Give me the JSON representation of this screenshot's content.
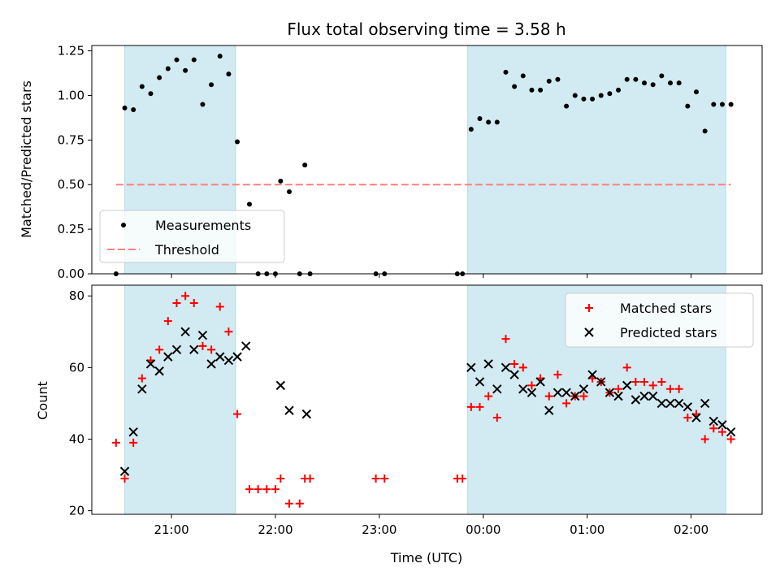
{
  "chart_data": [
    {
      "type": "scatter",
      "title": "Flux total observing time = 3.58 h",
      "xlabel": "",
      "ylabel": "Matched/Predicted stars",
      "ylim": [
        0,
        1.28
      ],
      "xlim": [
        "20:14",
        "02:41"
      ],
      "yticks": [
        "0.00",
        "0.25",
        "0.50",
        "0.75",
        "1.00",
        "1.25"
      ],
      "shaded_intervals": [
        [
          "20:33",
          "21:37"
        ],
        [
          "23:51",
          "02:20"
        ]
      ],
      "shade_color": "#add8e6",
      "threshold": 0.5,
      "threshold_color": "#ff7f7f",
      "legend": {
        "position": "lower-left",
        "entries": [
          "Measurements",
          "Threshold"
        ]
      },
      "series": [
        {
          "name": "Measurements",
          "color": "#000000",
          "points": [
            [
              "20:28",
              0.0
            ],
            [
              "20:33",
              0.93
            ],
            [
              "20:38",
              0.92
            ],
            [
              "20:43",
              1.05
            ],
            [
              "20:48",
              1.01
            ],
            [
              "20:53",
              1.1
            ],
            [
              "20:58",
              1.15
            ],
            [
              "21:03",
              1.2
            ],
            [
              "21:08",
              1.14
            ],
            [
              "21:13",
              1.2
            ],
            [
              "21:18",
              0.95
            ],
            [
              "21:23",
              1.06
            ],
            [
              "21:28",
              1.22
            ],
            [
              "21:33",
              1.12
            ],
            [
              "21:38",
              0.74
            ],
            [
              "21:45",
              0.39
            ],
            [
              "21:50",
              0.0
            ],
            [
              "21:55",
              0.0
            ],
            [
              "22:00",
              0.0
            ],
            [
              "22:03",
              0.52
            ],
            [
              "22:08",
              0.46
            ],
            [
              "22:14",
              0.0
            ],
            [
              "22:17",
              0.61
            ],
            [
              "22:20",
              0.0
            ],
            [
              "22:58",
              0.0
            ],
            [
              "23:03",
              0.0
            ],
            [
              "23:45",
              0.0
            ],
            [
              "23:48",
              0.0
            ],
            [
              "23:53",
              0.81
            ],
            [
              "23:58",
              0.87
            ],
            [
              "00:03",
              0.85
            ],
            [
              "00:08",
              0.85
            ],
            [
              "00:13",
              1.13
            ],
            [
              "00:18",
              1.05
            ],
            [
              "00:23",
              1.11
            ],
            [
              "00:28",
              1.03
            ],
            [
              "00:33",
              1.03
            ],
            [
              "00:38",
              1.08
            ],
            [
              "00:43",
              1.09
            ],
            [
              "00:48",
              0.94
            ],
            [
              "00:53",
              1.0
            ],
            [
              "00:58",
              0.98
            ],
            [
              "01:03",
              0.98
            ],
            [
              "01:08",
              1.0
            ],
            [
              "01:13",
              1.01
            ],
            [
              "01:18",
              1.03
            ],
            [
              "01:23",
              1.09
            ],
            [
              "01:28",
              1.09
            ],
            [
              "01:33",
              1.07
            ],
            [
              "01:38",
              1.06
            ],
            [
              "01:43",
              1.11
            ],
            [
              "01:48",
              1.07
            ],
            [
              "01:53",
              1.07
            ],
            [
              "01:58",
              0.94
            ],
            [
              "02:03",
              1.02
            ],
            [
              "02:08",
              0.8
            ],
            [
              "02:13",
              0.95
            ],
            [
              "02:18",
              0.95
            ],
            [
              "02:23",
              0.95
            ]
          ]
        }
      ]
    },
    {
      "type": "scatter",
      "title": "",
      "xlabel": "Time (UTC)",
      "ylabel": "Count",
      "ylim": [
        19,
        83
      ],
      "xlim": [
        "20:14",
        "02:41"
      ],
      "xticks": [
        "21:00",
        "22:00",
        "23:00",
        "00:00",
        "01:00",
        "02:00"
      ],
      "yticks": [
        "20",
        "40",
        "60",
        "80"
      ],
      "shaded_intervals": [
        [
          "20:33",
          "21:37"
        ],
        [
          "23:51",
          "02:20"
        ]
      ],
      "shade_color": "#add8e6",
      "legend": {
        "position": "top-right",
        "entries": [
          "Matched stars",
          "Predicted stars"
        ]
      },
      "series": [
        {
          "name": "Matched stars",
          "marker": "plus",
          "color": "#ff0000",
          "points": [
            [
              "20:28",
              39
            ],
            [
              "20:33",
              29
            ],
            [
              "20:38",
              39
            ],
            [
              "20:43",
              57
            ],
            [
              "20:48",
              62
            ],
            [
              "20:53",
              65
            ],
            [
              "20:58",
              73
            ],
            [
              "21:03",
              78
            ],
            [
              "21:08",
              80
            ],
            [
              "21:13",
              78
            ],
            [
              "21:18",
              66
            ],
            [
              "21:23",
              65
            ],
            [
              "21:28",
              77
            ],
            [
              "21:33",
              70
            ],
            [
              "21:38",
              47
            ],
            [
              "21:45",
              26
            ],
            [
              "21:50",
              26
            ],
            [
              "21:55",
              26
            ],
            [
              "22:00",
              26
            ],
            [
              "22:03",
              29
            ],
            [
              "22:08",
              22
            ],
            [
              "22:14",
              22
            ],
            [
              "22:17",
              29
            ],
            [
              "22:20",
              29
            ],
            [
              "22:58",
              29
            ],
            [
              "23:03",
              29
            ],
            [
              "23:45",
              29
            ],
            [
              "23:48",
              29
            ],
            [
              "23:53",
              49
            ],
            [
              "23:58",
              49
            ],
            [
              "00:03",
              52
            ],
            [
              "00:08",
              46
            ],
            [
              "00:13",
              68
            ],
            [
              "00:18",
              61
            ],
            [
              "00:23",
              60
            ],
            [
              "00:28",
              55
            ],
            [
              "00:33",
              57
            ],
            [
              "00:38",
              52
            ],
            [
              "00:43",
              58
            ],
            [
              "00:48",
              50
            ],
            [
              "00:53",
              52
            ],
            [
              "00:58",
              52
            ],
            [
              "01:03",
              57
            ],
            [
              "01:08",
              56
            ],
            [
              "01:13",
              53
            ],
            [
              "01:18",
              54
            ],
            [
              "01:23",
              60
            ],
            [
              "01:28",
              56
            ],
            [
              "01:33",
              56
            ],
            [
              "01:38",
              55
            ],
            [
              "01:43",
              56
            ],
            [
              "01:48",
              54
            ],
            [
              "01:53",
              54
            ],
            [
              "01:58",
              46
            ],
            [
              "02:03",
              47
            ],
            [
              "02:08",
              40
            ],
            [
              "02:13",
              43
            ],
            [
              "02:18",
              42
            ],
            [
              "02:23",
              40
            ]
          ]
        },
        {
          "name": "Predicted stars",
          "marker": "x",
          "color": "#000000",
          "points": [
            [
              "20:33",
              31
            ],
            [
              "20:38",
              42
            ],
            [
              "20:43",
              54
            ],
            [
              "20:48",
              61
            ],
            [
              "20:53",
              59
            ],
            [
              "20:58",
              63
            ],
            [
              "21:03",
              65
            ],
            [
              "21:08",
              70
            ],
            [
              "21:13",
              65
            ],
            [
              "21:18",
              69
            ],
            [
              "21:23",
              61
            ],
            [
              "21:28",
              63
            ],
            [
              "21:33",
              62
            ],
            [
              "21:38",
              63
            ],
            [
              "21:43",
              66
            ],
            [
              "22:03",
              55
            ],
            [
              "22:08",
              48
            ],
            [
              "22:18",
              47
            ],
            [
              "23:53",
              60
            ],
            [
              "23:58",
              56
            ],
            [
              "00:03",
              61
            ],
            [
              "00:08",
              54
            ],
            [
              "00:13",
              60
            ],
            [
              "00:18",
              58
            ],
            [
              "00:23",
              54
            ],
            [
              "00:28",
              53
            ],
            [
              "00:33",
              56
            ],
            [
              "00:38",
              48
            ],
            [
              "00:43",
              53
            ],
            [
              "00:48",
              53
            ],
            [
              "00:53",
              52
            ],
            [
              "00:58",
              54
            ],
            [
              "01:03",
              58
            ],
            [
              "01:08",
              56
            ],
            [
              "01:13",
              53
            ],
            [
              "01:18",
              52
            ],
            [
              "01:23",
              55
            ],
            [
              "01:28",
              51
            ],
            [
              "01:33",
              52
            ],
            [
              "01:38",
              52
            ],
            [
              "01:43",
              50
            ],
            [
              "01:48",
              50
            ],
            [
              "01:53",
              50
            ],
            [
              "01:58",
              49
            ],
            [
              "02:03",
              46
            ],
            [
              "02:08",
              50
            ],
            [
              "02:13",
              45
            ],
            [
              "02:18",
              44
            ],
            [
              "02:23",
              42
            ]
          ]
        }
      ]
    }
  ]
}
